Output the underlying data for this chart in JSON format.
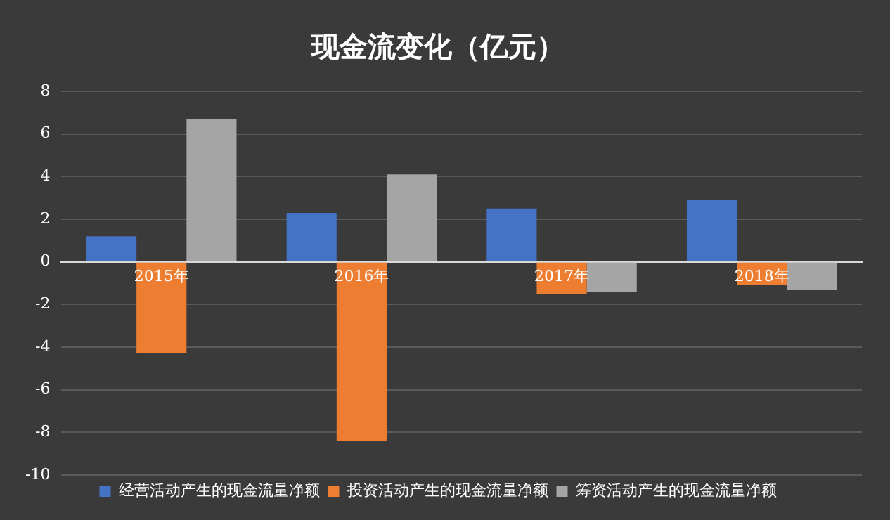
{
  "chart_data": {
    "type": "bar",
    "title": "现金流变化（亿元）",
    "categories": [
      "2015年",
      "2016年",
      "2017年",
      "2018年"
    ],
    "series": [
      {
        "name": "经营活动产生的现金流量净额",
        "color": "#4472c4",
        "values": [
          1.2,
          2.3,
          2.5,
          2.9
        ]
      },
      {
        "name": "投资活动产生的现金流量净额",
        "color": "#ed7d31",
        "values": [
          -4.3,
          -8.4,
          -1.5,
          -1.1
        ]
      },
      {
        "name": "筹资活动产生的现金流量净额",
        "color": "#a5a5a5",
        "values": [
          6.7,
          4.1,
          -1.4,
          -1.3
        ]
      }
    ],
    "ylim": [
      -10,
      8
    ],
    "yticks": [
      -10,
      -8,
      -6,
      -4,
      -2,
      0,
      2,
      4,
      6,
      8
    ],
    "grid": "y",
    "legend": "bottom"
  }
}
